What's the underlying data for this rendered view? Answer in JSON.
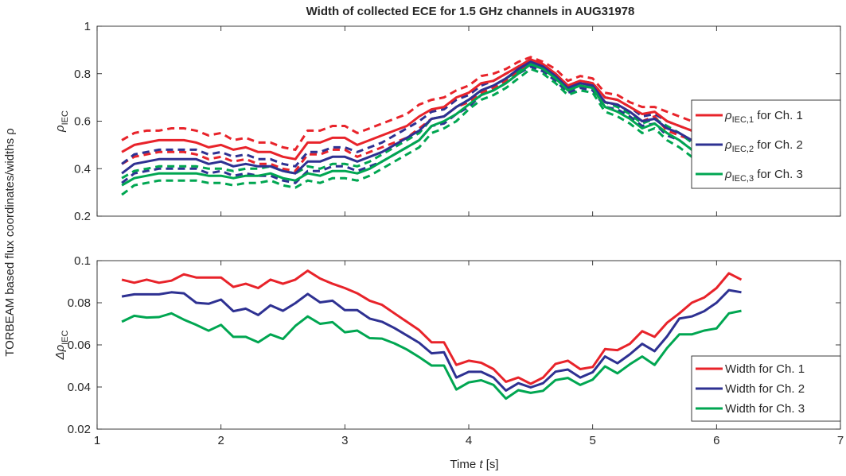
{
  "figure": {
    "title": "Width of collected ECE for 1.5 GHz channels in AUG31978",
    "ylabel": "TORBEAM based flux coordinates/widths ρ",
    "xlabel_prefix": "Time ",
    "xlabel_var": "t",
    "xlabel_suffix": " [s]"
  },
  "colors": {
    "ch1": "#e8232a",
    "ch2": "#2e3192",
    "ch3": "#00a651",
    "axes": "#262626"
  },
  "chart_data": [
    {
      "type": "line",
      "title": "Width of collected ECE for 1.5 GHz channels in AUG31978",
      "ylabel_main": "ρ",
      "ylabel_sub": "IEC",
      "xlim": [
        1,
        7
      ],
      "ylim": [
        0.2,
        1
      ],
      "x_ticks": [
        1,
        2,
        3,
        4,
        5,
        6,
        7
      ],
      "x_tick_labels": [],
      "y_ticks": [
        0.2,
        0.4,
        0.6,
        0.8,
        1
      ],
      "y_tick_labels": [
        "0.2",
        "0.4",
        "0.6",
        "0.8",
        "1"
      ],
      "legend_position": "right",
      "x": [
        1.2,
        1.3,
        1.4,
        1.5,
        1.6,
        1.7,
        1.8,
        1.9,
        2.0,
        2.1,
        2.2,
        2.3,
        2.4,
        2.5,
        2.6,
        2.7,
        2.8,
        2.9,
        3.0,
        3.1,
        3.2,
        3.3,
        3.4,
        3.5,
        3.6,
        3.7,
        3.8,
        3.9,
        4.0,
        4.1,
        4.2,
        4.3,
        4.4,
        4.5,
        4.6,
        4.7,
        4.8,
        4.9,
        5.0,
        5.1,
        5.2,
        5.3,
        5.4,
        5.5,
        5.6,
        5.7,
        5.8,
        5.9,
        6.0,
        6.1,
        6.2
      ],
      "series": [
        {
          "name_main": "ρ",
          "name_sub": "IEC,1",
          "name_suffix": " for Ch. 1",
          "color_key": "ch1",
          "values": [
            0.47,
            0.5,
            0.51,
            0.52,
            0.52,
            0.52,
            0.51,
            0.49,
            0.5,
            0.48,
            0.49,
            0.47,
            0.47,
            0.45,
            0.44,
            0.51,
            0.51,
            0.53,
            0.53,
            0.5,
            0.52,
            0.54,
            0.56,
            0.58,
            0.62,
            0.65,
            0.66,
            0.7,
            0.72,
            0.76,
            0.77,
            0.8,
            0.83,
            0.86,
            0.84,
            0.8,
            0.75,
            0.77,
            0.76,
            0.7,
            0.69,
            0.66,
            0.63,
            0.64,
            0.6,
            0.58,
            0.56,
            0.55,
            0.53,
            0.5,
            0.49
          ],
          "upper": [
            0.52,
            0.55,
            0.56,
            0.56,
            0.57,
            0.57,
            0.56,
            0.54,
            0.55,
            0.52,
            0.53,
            0.51,
            0.51,
            0.49,
            0.48,
            0.56,
            0.56,
            0.58,
            0.58,
            0.55,
            0.57,
            0.59,
            0.61,
            0.63,
            0.67,
            0.69,
            0.7,
            0.73,
            0.75,
            0.79,
            0.8,
            0.82,
            0.85,
            0.87,
            0.85,
            0.82,
            0.77,
            0.79,
            0.78,
            0.72,
            0.71,
            0.68,
            0.66,
            0.66,
            0.64,
            0.62,
            0.6,
            0.59,
            0.57,
            0.55,
            0.54
          ],
          "lower": [
            0.42,
            0.45,
            0.46,
            0.47,
            0.47,
            0.47,
            0.46,
            0.44,
            0.45,
            0.43,
            0.44,
            0.42,
            0.42,
            0.4,
            0.39,
            0.46,
            0.46,
            0.48,
            0.48,
            0.45,
            0.47,
            0.49,
            0.51,
            0.53,
            0.57,
            0.61,
            0.62,
            0.66,
            0.68,
            0.72,
            0.74,
            0.77,
            0.81,
            0.84,
            0.82,
            0.78,
            0.73,
            0.75,
            0.74,
            0.68,
            0.67,
            0.64,
            0.6,
            0.62,
            0.56,
            0.54,
            0.52,
            0.51,
            0.49,
            0.45,
            0.44
          ]
        },
        {
          "name_main": "ρ",
          "name_sub": "IEC,2",
          "name_suffix": " for Ch. 2",
          "color_key": "ch2",
          "values": [
            0.38,
            0.42,
            0.43,
            0.44,
            0.44,
            0.44,
            0.44,
            0.42,
            0.43,
            0.41,
            0.42,
            0.41,
            0.41,
            0.39,
            0.38,
            0.43,
            0.43,
            0.45,
            0.45,
            0.43,
            0.45,
            0.47,
            0.5,
            0.53,
            0.56,
            0.61,
            0.62,
            0.66,
            0.69,
            0.73,
            0.75,
            0.78,
            0.82,
            0.85,
            0.83,
            0.79,
            0.74,
            0.76,
            0.75,
            0.68,
            0.67,
            0.64,
            0.6,
            0.61,
            0.57,
            0.55,
            0.52,
            0.51,
            0.49,
            0.46,
            0.45
          ],
          "upper": [
            0.42,
            0.46,
            0.47,
            0.48,
            0.48,
            0.48,
            0.48,
            0.46,
            0.47,
            0.45,
            0.46,
            0.44,
            0.44,
            0.42,
            0.41,
            0.47,
            0.47,
            0.49,
            0.49,
            0.47,
            0.49,
            0.51,
            0.54,
            0.57,
            0.6,
            0.64,
            0.65,
            0.69,
            0.71,
            0.75,
            0.77,
            0.8,
            0.83,
            0.86,
            0.84,
            0.8,
            0.75,
            0.77,
            0.76,
            0.7,
            0.69,
            0.66,
            0.62,
            0.63,
            0.6,
            0.58,
            0.56,
            0.55,
            0.53,
            0.5,
            0.49
          ],
          "lower": [
            0.34,
            0.38,
            0.39,
            0.4,
            0.4,
            0.4,
            0.4,
            0.38,
            0.39,
            0.37,
            0.38,
            0.37,
            0.37,
            0.35,
            0.34,
            0.39,
            0.39,
            0.41,
            0.41,
            0.39,
            0.41,
            0.43,
            0.46,
            0.49,
            0.52,
            0.58,
            0.59,
            0.63,
            0.66,
            0.71,
            0.73,
            0.76,
            0.8,
            0.83,
            0.81,
            0.77,
            0.72,
            0.74,
            0.73,
            0.66,
            0.65,
            0.62,
            0.58,
            0.59,
            0.54,
            0.52,
            0.48,
            0.47,
            0.45,
            0.42,
            0.41
          ]
        },
        {
          "name_main": "ρ",
          "name_sub": "IEC,3",
          "name_suffix": " for Ch. 3",
          "color_key": "ch3",
          "values": [
            0.33,
            0.36,
            0.37,
            0.38,
            0.38,
            0.38,
            0.38,
            0.37,
            0.37,
            0.36,
            0.37,
            0.37,
            0.38,
            0.36,
            0.35,
            0.38,
            0.37,
            0.39,
            0.39,
            0.38,
            0.4,
            0.43,
            0.46,
            0.49,
            0.52,
            0.58,
            0.6,
            0.63,
            0.67,
            0.71,
            0.73,
            0.76,
            0.8,
            0.84,
            0.82,
            0.78,
            0.73,
            0.75,
            0.74,
            0.66,
            0.64,
            0.61,
            0.57,
            0.59,
            0.55,
            0.52,
            0.48,
            0.47,
            0.45,
            0.42,
            0.41
          ],
          "upper": [
            0.36,
            0.39,
            0.4,
            0.41,
            0.41,
            0.41,
            0.41,
            0.4,
            0.4,
            0.39,
            0.4,
            0.4,
            0.41,
            0.39,
            0.38,
            0.41,
            0.4,
            0.42,
            0.42,
            0.41,
            0.43,
            0.46,
            0.49,
            0.52,
            0.55,
            0.61,
            0.62,
            0.66,
            0.69,
            0.73,
            0.75,
            0.78,
            0.81,
            0.85,
            0.83,
            0.79,
            0.74,
            0.76,
            0.75,
            0.68,
            0.66,
            0.63,
            0.59,
            0.61,
            0.58,
            0.55,
            0.51,
            0.5,
            0.48,
            0.45,
            0.44
          ],
          "lower": [
            0.29,
            0.33,
            0.34,
            0.35,
            0.35,
            0.35,
            0.35,
            0.34,
            0.34,
            0.33,
            0.34,
            0.34,
            0.35,
            0.33,
            0.32,
            0.35,
            0.34,
            0.36,
            0.36,
            0.35,
            0.37,
            0.4,
            0.43,
            0.46,
            0.49,
            0.55,
            0.57,
            0.6,
            0.65,
            0.69,
            0.71,
            0.74,
            0.78,
            0.82,
            0.8,
            0.76,
            0.71,
            0.73,
            0.72,
            0.64,
            0.62,
            0.59,
            0.55,
            0.57,
            0.52,
            0.49,
            0.45,
            0.44,
            0.42,
            0.39,
            0.38
          ]
        }
      ]
    },
    {
      "type": "line",
      "title": "",
      "ylabel_main": "Δρ",
      "ylabel_sub": "IEC",
      "xlabel": "Time t [s]",
      "xlim": [
        1,
        7
      ],
      "ylim": [
        0.02,
        0.1
      ],
      "x_ticks": [
        1,
        2,
        3,
        4,
        5,
        6,
        7
      ],
      "x_tick_labels": [
        "1",
        "2",
        "3",
        "4",
        "5",
        "6",
        "7"
      ],
      "y_ticks": [
        0.02,
        0.04,
        0.06,
        0.08,
        0.1
      ],
      "y_tick_labels": [
        "0.02",
        "0.04",
        "0.06",
        "0.08",
        "0.1"
      ],
      "legend_position": "bottom-right",
      "x": [
        1.2,
        1.3,
        1.4,
        1.5,
        1.6,
        1.7,
        1.8,
        1.9,
        2.0,
        2.1,
        2.2,
        2.3,
        2.4,
        2.5,
        2.6,
        2.7,
        2.8,
        2.9,
        3.0,
        3.1,
        3.2,
        3.3,
        3.4,
        3.5,
        3.6,
        3.7,
        3.8,
        3.9,
        4.0,
        4.1,
        4.2,
        4.3,
        4.4,
        4.5,
        4.6,
        4.7,
        4.8,
        4.9,
        5.0,
        5.1,
        5.2,
        5.3,
        5.4,
        5.5,
        5.6,
        5.7,
        5.8,
        5.9,
        6.0,
        6.1,
        6.2
      ],
      "series": [
        {
          "name": "Width for Ch. 1",
          "color_key": "ch1",
          "values": [
            0.091,
            0.0895,
            0.091,
            0.0895,
            0.0905,
            0.0935,
            0.092,
            0.092,
            0.092,
            0.0875,
            0.089,
            0.087,
            0.091,
            0.089,
            0.091,
            0.0952,
            0.0915,
            0.089,
            0.087,
            0.0845,
            0.081,
            0.079,
            0.075,
            0.071,
            0.067,
            0.0612,
            0.0612,
            0.0505,
            0.0525,
            0.0515,
            0.0485,
            0.0425,
            0.0445,
            0.0415,
            0.0445,
            0.051,
            0.0525,
            0.0485,
            0.0495,
            0.058,
            0.0575,
            0.0605,
            0.0665,
            0.0638,
            0.0705,
            0.075,
            0.08,
            0.0825,
            0.087,
            0.094,
            0.091
          ]
        },
        {
          "name": "Width for Ch. 2",
          "color_key": "ch2",
          "values": [
            0.083,
            0.084,
            0.084,
            0.084,
            0.085,
            0.0845,
            0.08,
            0.0795,
            0.0815,
            0.076,
            0.0772,
            0.0742,
            0.0788,
            0.0762,
            0.0798,
            0.0842,
            0.0802,
            0.081,
            0.0765,
            0.0765,
            0.0725,
            0.071,
            0.068,
            0.0645,
            0.061,
            0.056,
            0.0565,
            0.0445,
            0.0472,
            0.0472,
            0.0445,
            0.0383,
            0.0418,
            0.0398,
            0.0418,
            0.0473,
            0.0483,
            0.0445,
            0.047,
            0.0545,
            0.0513,
            0.0555,
            0.0605,
            0.057,
            0.064,
            0.0725,
            0.0735,
            0.076,
            0.08,
            0.086,
            0.085
          ]
        },
        {
          "name": "Width for Ch. 3",
          "color_key": "ch3",
          "values": [
            0.071,
            0.0738,
            0.073,
            0.0732,
            0.075,
            0.072,
            0.0695,
            0.0667,
            0.0695,
            0.0638,
            0.0638,
            0.0612,
            0.065,
            0.0628,
            0.069,
            0.0735,
            0.07,
            0.0708,
            0.066,
            0.0668,
            0.0632,
            0.063,
            0.0607,
            0.0578,
            0.0542,
            0.0502,
            0.0502,
            0.0388,
            0.0422,
            0.0432,
            0.041,
            0.0345,
            0.0385,
            0.0372,
            0.0382,
            0.0433,
            0.0443,
            0.041,
            0.0435,
            0.0498,
            0.0465,
            0.0508,
            0.0545,
            0.0505,
            0.0585,
            0.065,
            0.065,
            0.0668,
            0.0678,
            0.075,
            0.0762
          ]
        }
      ]
    }
  ]
}
